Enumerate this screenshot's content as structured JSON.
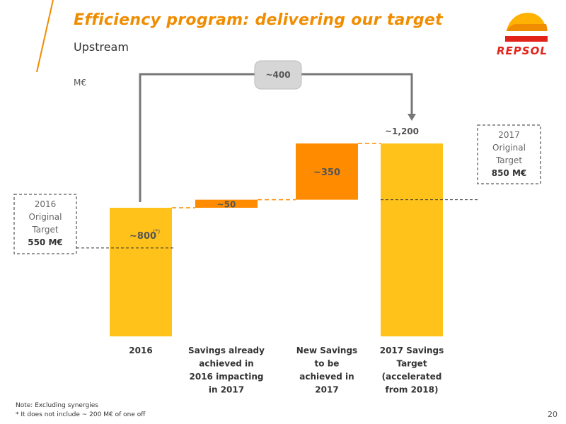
{
  "header": {
    "title": "Efficiency program: delivering our target",
    "subtitle": "Upstream",
    "logo_text": "REPSOL"
  },
  "colors": {
    "brand_orange": "#f08c00",
    "bar_yellow": "#ffc21a",
    "bar_orange": "#ff8c00",
    "logo_red": "#e2231a"
  },
  "chart_data": {
    "type": "waterfall",
    "unit": "M€",
    "categories": [
      "2016",
      "Savings already achieved in 2016 impacting in 2017",
      "New Savings to be achieved in 2017",
      "2017 Savings Target (accelerated from 2018)"
    ],
    "category_lines": [
      [
        "2016"
      ],
      [
        "Savings already",
        "achieved in",
        "2016 impacting",
        "in 2017"
      ],
      [
        "New Savings",
        "to be",
        "achieved in",
        "2017"
      ],
      [
        "2017 Savings",
        "Target",
        "(accelerated",
        "from 2018)"
      ]
    ],
    "values": [
      800,
      50,
      350,
      1200
    ],
    "value_labels": [
      "~800",
      "~50",
      "~350",
      "~1,200"
    ],
    "bar_kinds": [
      "total",
      "increment",
      "increment",
      "total"
    ],
    "footnote_marker": "(*)",
    "ylim": [
      0,
      1380
    ],
    "bracket": {
      "label": "~400",
      "from_category": 0,
      "to_category": 3
    },
    "original_targets": [
      {
        "lines": [
          "2016",
          "Original",
          "Target"
        ],
        "value_label": "550 M€",
        "value": 550
      },
      {
        "lines": [
          "2017",
          "Original",
          "Target"
        ],
        "value_label": "850 M€",
        "value": 850
      }
    ]
  },
  "footnotes": {
    "note": "Note: Excluding synergies",
    "star": "* It does not include ~ 200 M€ of one off"
  },
  "page_number": "20"
}
